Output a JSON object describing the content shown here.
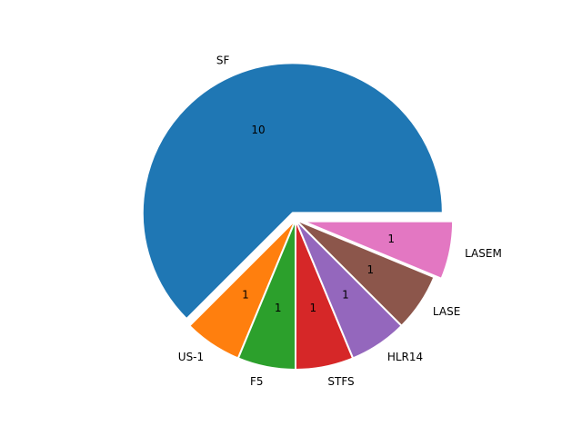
{
  "chart_data": {
    "type": "pie",
    "title": "",
    "labels": [
      "SF",
      "US-1",
      "F5",
      "STFS",
      "HLR14",
      "LASE",
      "LASEM"
    ],
    "values": [
      10,
      1,
      1,
      1,
      1,
      1,
      1
    ],
    "value_labels": [
      "10",
      "1",
      "1",
      "1",
      "1",
      "1",
      "1"
    ],
    "colors": [
      "#1f77b4",
      "#ff7f0e",
      "#2ca02c",
      "#d62728",
      "#9467bd",
      "#8c564b",
      "#e377c2"
    ],
    "exploded": [
      "SF",
      "LASEM"
    ],
    "start_angle_deg": 0,
    "direction": "counterclockwise",
    "wedge_edge_color": "#ffffff",
    "legend": false
  }
}
